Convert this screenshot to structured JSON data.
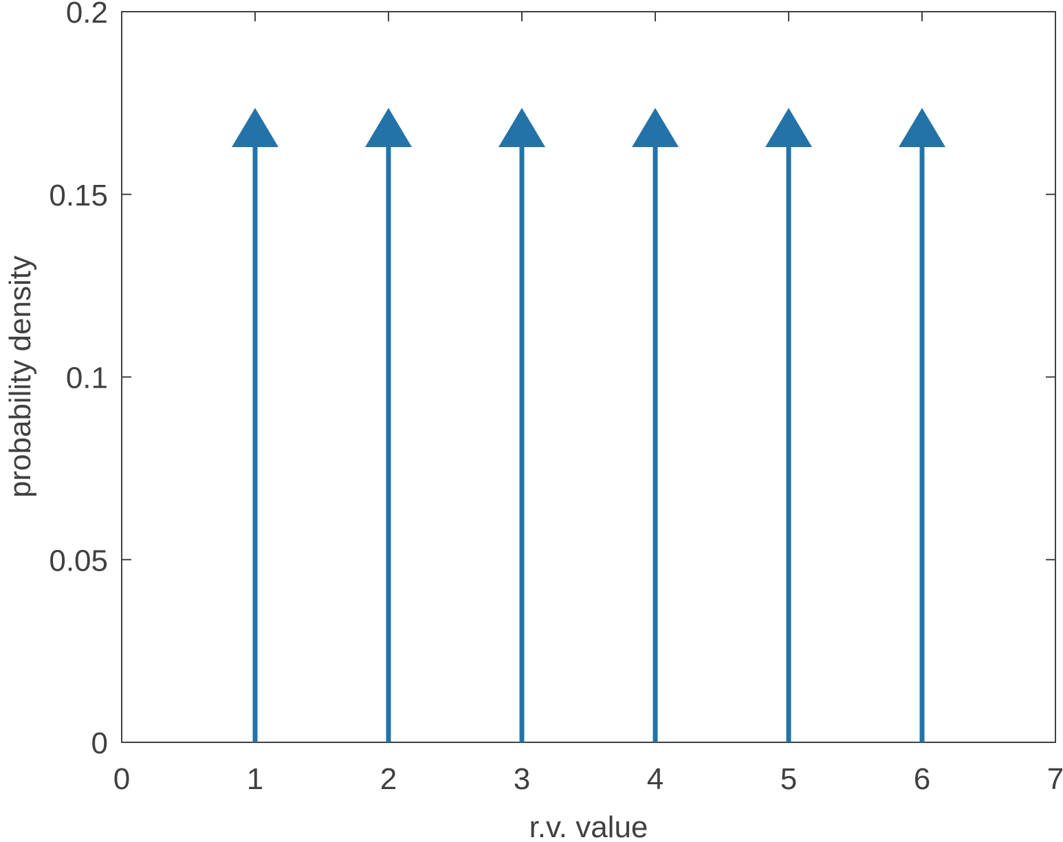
{
  "chart_data": {
    "type": "stem",
    "x": [
      1,
      2,
      3,
      4,
      5,
      6
    ],
    "values": [
      0.1667,
      0.1667,
      0.1667,
      0.1667,
      0.1667,
      0.1667
    ],
    "color": "#2473a8",
    "xlabel": "r.v. value",
    "ylabel": "probability density",
    "xlim": [
      0,
      7
    ],
    "xticks": [
      0,
      1,
      2,
      3,
      4,
      5,
      6,
      7
    ],
    "ylim": [
      0,
      0.2
    ],
    "yticks": [
      0,
      0.05,
      0.1,
      0.15,
      0.2
    ],
    "grid": false
  }
}
